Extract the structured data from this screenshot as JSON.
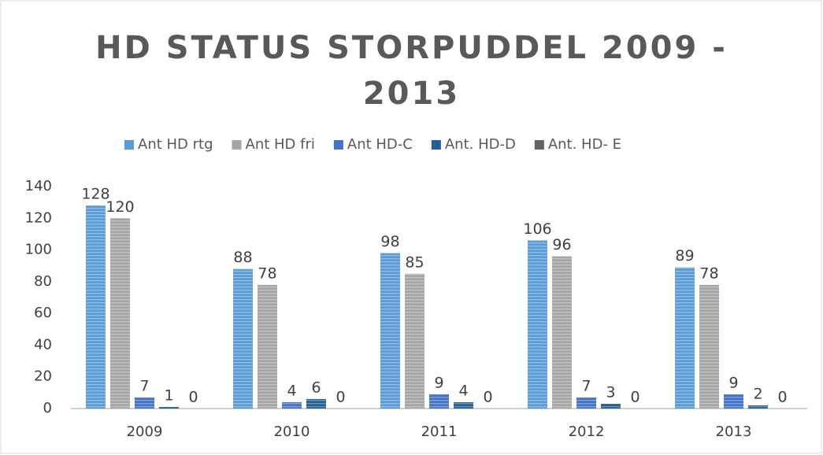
{
  "chart_data": {
    "type": "bar",
    "title": "HD STATUS STORPUDDEL 2009 - 2013",
    "categories": [
      "2009",
      "2010",
      "2011",
      "2012",
      "2013"
    ],
    "series": [
      {
        "name": "Ant HD rtg",
        "color": "#5b9bd5",
        "values": [
          128,
          88,
          98,
          106,
          89
        ]
      },
      {
        "name": "Ant HD fri",
        "color": "#a5a5a5",
        "values": [
          120,
          78,
          85,
          96,
          78
        ]
      },
      {
        "name": "Ant HD-C",
        "color": "#4472c4",
        "values": [
          7,
          4,
          9,
          7,
          9
        ]
      },
      {
        "name": "Ant. HD-D",
        "color": "#255e91",
        "values": [
          1,
          6,
          4,
          3,
          2
        ]
      },
      {
        "name": "Ant. HD- E",
        "color": "#636363",
        "values": [
          0,
          0,
          0,
          0,
          0
        ]
      }
    ],
    "ylim": [
      0,
      140
    ],
    "yticks": [
      0,
      20,
      40,
      60,
      80,
      100,
      120,
      140
    ],
    "legend": "top",
    "grid": false
  }
}
